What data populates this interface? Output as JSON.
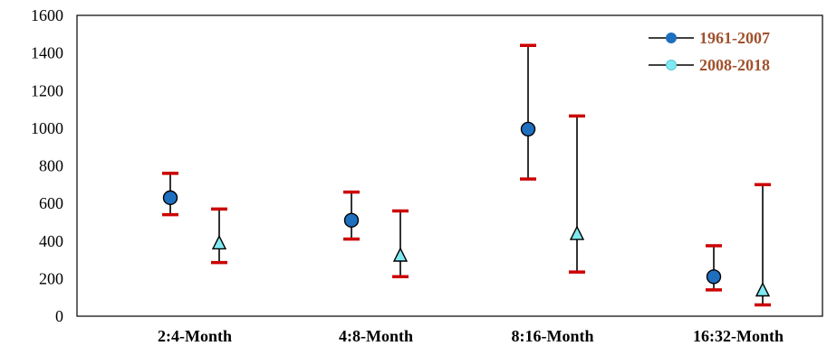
{
  "chart_data": {
    "type": "scatter",
    "title": "",
    "xlabel": "",
    "ylabel": "",
    "categories": [
      "2:4-Month",
      "4:8-Month",
      "8:16-Month",
      "16:32-Month"
    ],
    "ylim": [
      0,
      1600
    ],
    "yticks": [
      "0",
      "200",
      "400",
      "600",
      "800",
      "1000",
      "1200",
      "1400",
      "1600"
    ],
    "grid": false,
    "legend_position": "top-right",
    "colors": {
      "series1_marker": "#1f6fbf",
      "series2_marker": "#7fe8f0",
      "error_cap": "#cc0000",
      "legend_text": "#a0522d"
    },
    "series": [
      {
        "name": "1961-2007",
        "marker": "circle",
        "values": [
          630,
          510,
          995,
          210
        ],
        "lower": [
          540,
          410,
          730,
          140
        ],
        "upper": [
          760,
          660,
          1440,
          375
        ]
      },
      {
        "name": "2008-2018",
        "marker": "triangle",
        "values": [
          385,
          320,
          435,
          135
        ],
        "lower": [
          285,
          210,
          235,
          60
        ],
        "upper": [
          570,
          560,
          1065,
          700
        ]
      }
    ]
  }
}
